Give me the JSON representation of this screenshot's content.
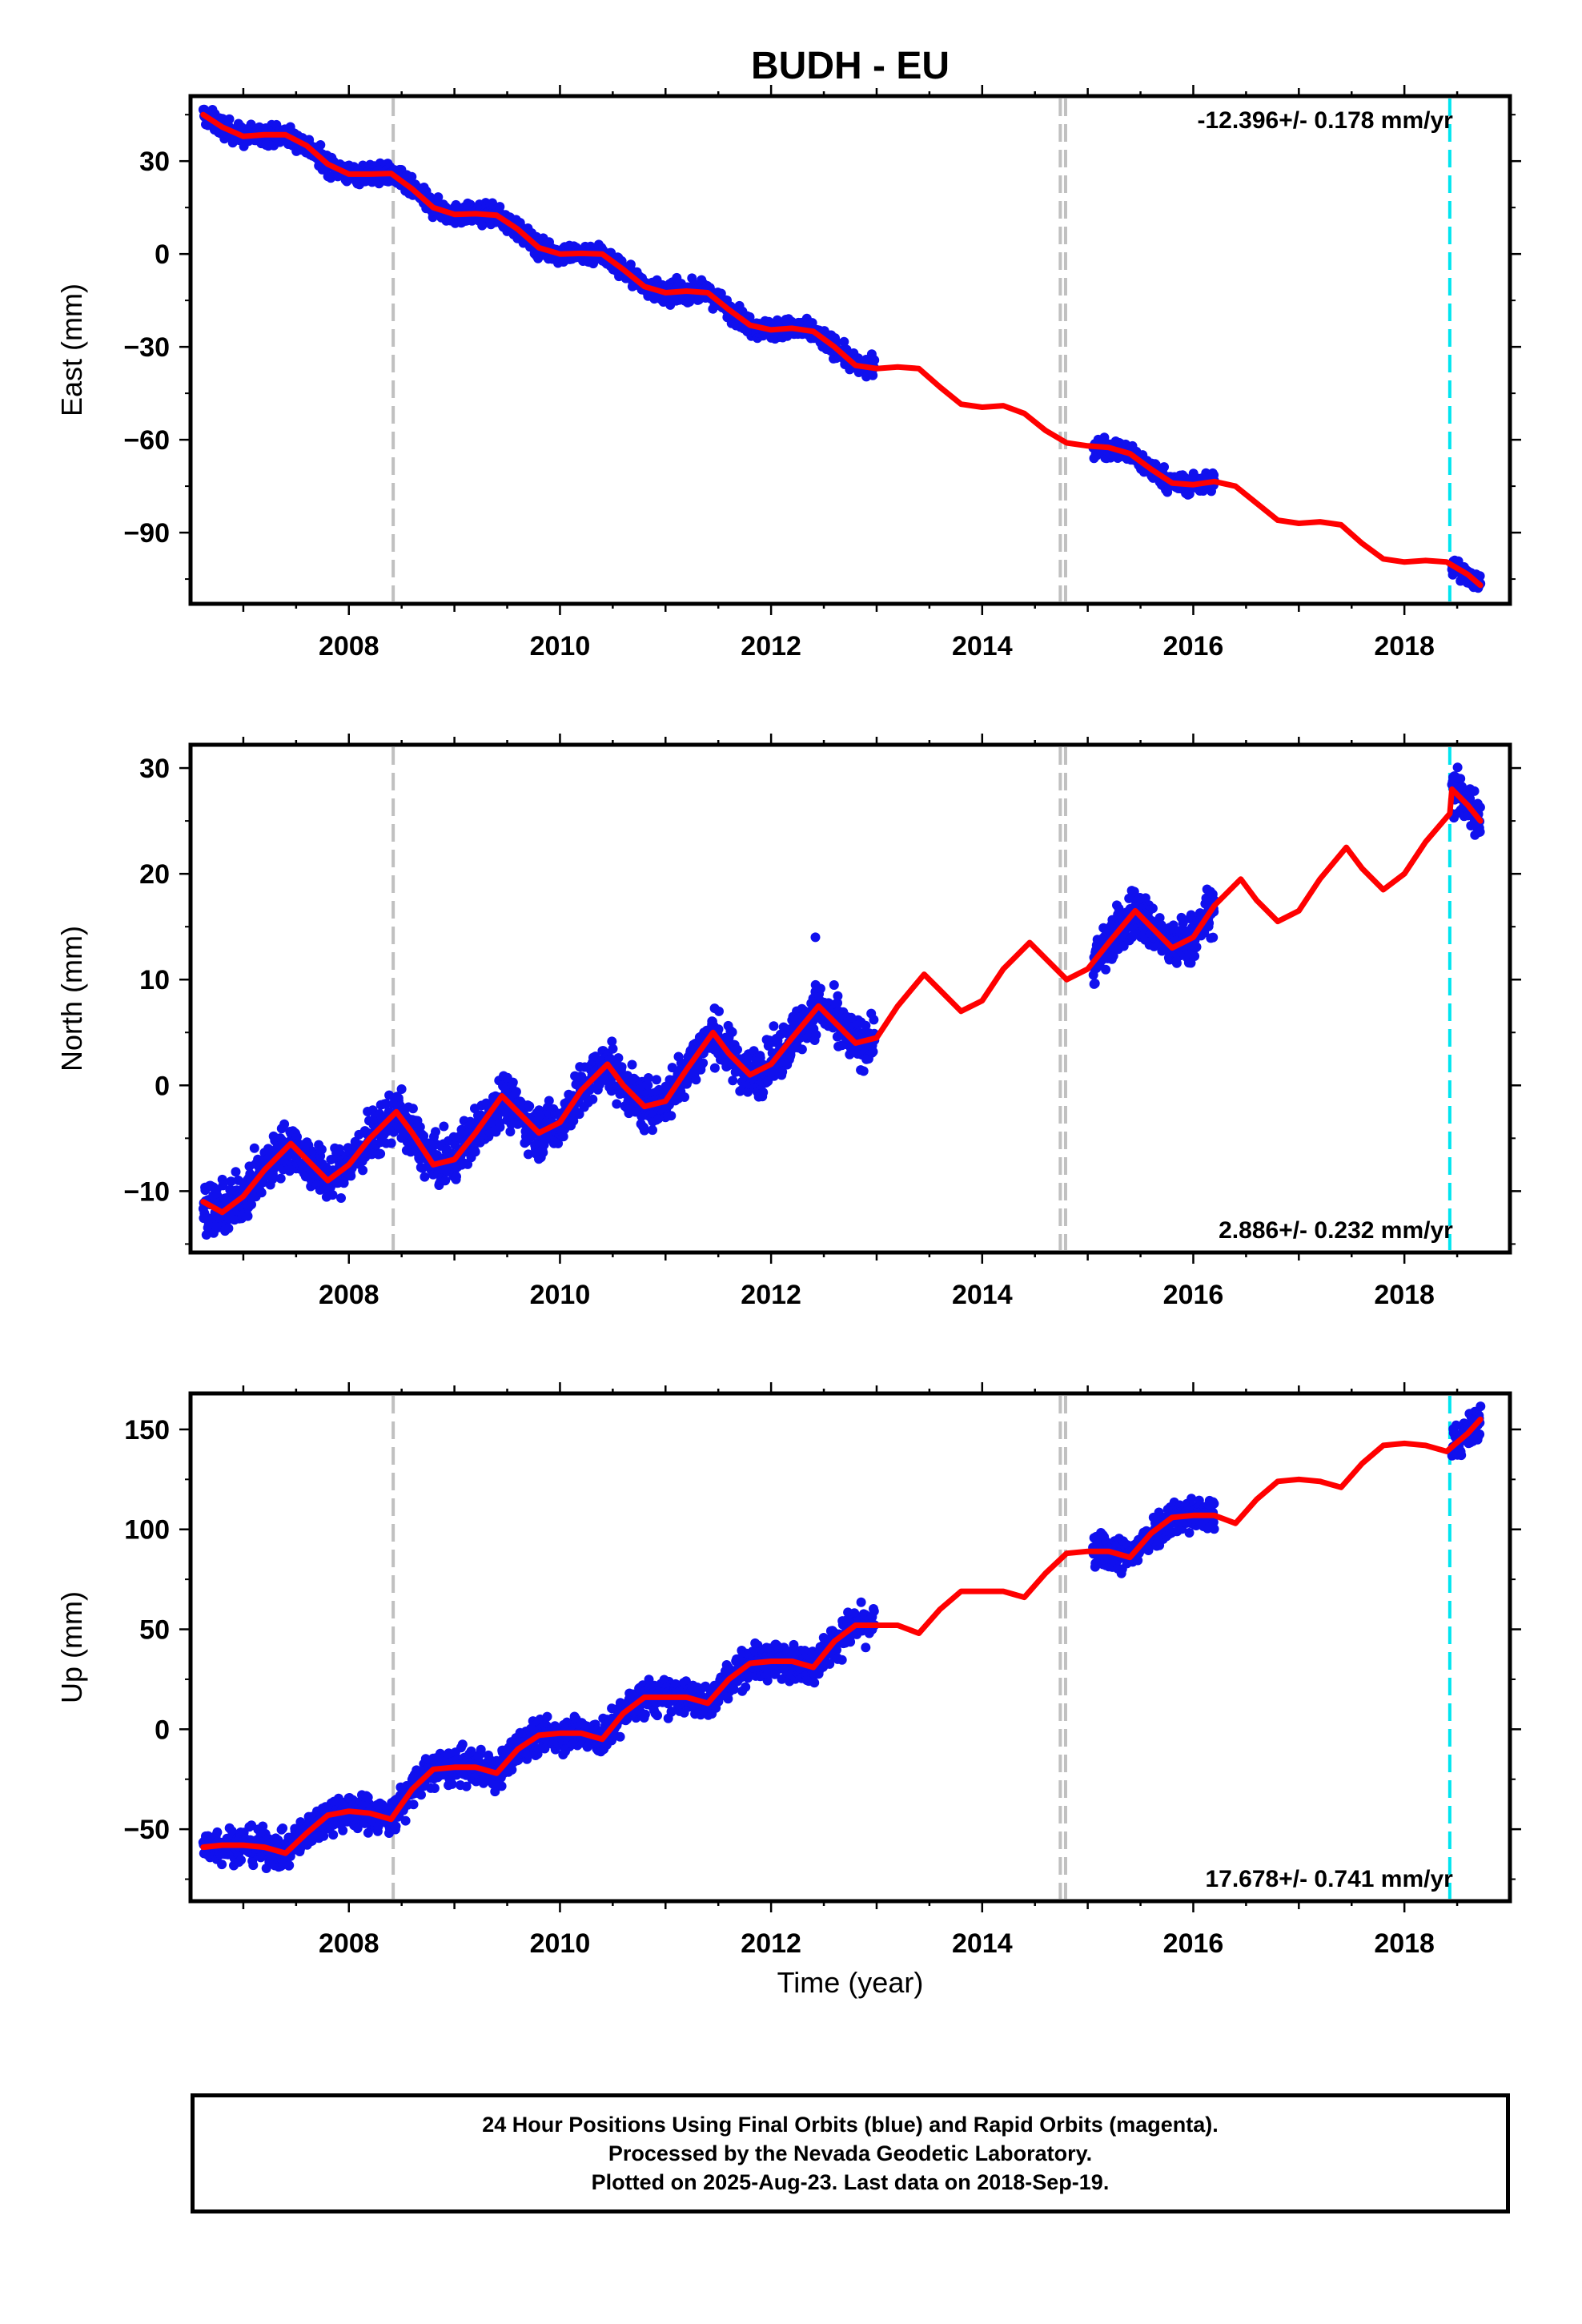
{
  "title": "BUDH - EU",
  "colors": {
    "data": "#1010ee",
    "model": "#ff0000",
    "equipment_change": "#c0c0c0",
    "earthquake": "#00e5f0",
    "frame": "#000000"
  },
  "xlabel": "Time (year)",
  "footer": {
    "line1": "24 Hour Positions Using Final Orbits (blue) and Rapid Orbits (magenta).",
    "line2": "Processed by the Nevada Geodetic Laboratory.",
    "line3": "Plotted on 2025-Aug-23. Last data on 2018-Sep-19."
  },
  "chart_data": [
    {
      "type": "scatter",
      "ylabel": "East (mm)",
      "rate_label": "-12.396+/- 0.178 mm/yr",
      "rate_label_position": "top-right",
      "xlim": [
        2006.5,
        2019.0
      ],
      "ylim": [
        -113,
        51
      ],
      "xticks": [
        2008,
        2010,
        2012,
        2014,
        2016,
        2018
      ],
      "yticks": [
        30,
        0,
        -30,
        -60,
        -90
      ],
      "ytick_labels": [
        "30",
        "0",
        "−30",
        "−60",
        "−90"
      ],
      "data_segments": [
        [
          2006.62,
          2012.98
        ],
        [
          2015.05,
          2016.2
        ],
        [
          2018.45,
          2018.72
        ]
      ],
      "vertical_lines": [
        {
          "x": 2008.42,
          "style": "dashed",
          "color": "gray"
        },
        {
          "x": 2014.74,
          "style": "dashed",
          "color": "gray"
        },
        {
          "x": 2014.79,
          "style": "dashed",
          "color": "gray"
        },
        {
          "x": 2018.43,
          "style": "dashed",
          "color": "cyan"
        }
      ],
      "model": {
        "x": [
          2006.62,
          2006.8,
          2007.0,
          2007.2,
          2007.4,
          2007.6,
          2007.8,
          2008.0,
          2008.2,
          2008.4,
          2008.6,
          2008.8,
          2009.0,
          2009.2,
          2009.4,
          2009.6,
          2009.8,
          2010.0,
          2010.2,
          2010.4,
          2010.6,
          2010.8,
          2011.0,
          2011.2,
          2011.4,
          2011.6,
          2011.8,
          2012.0,
          2012.2,
          2012.4,
          2012.6,
          2012.8,
          2013.0,
          2013.2,
          2013.4,
          2013.6,
          2013.8,
          2014.0,
          2014.2,
          2014.4,
          2014.6,
          2014.8,
          2015.0,
          2015.2,
          2015.4,
          2015.6,
          2015.8,
          2016.0,
          2016.2,
          2016.4,
          2016.6,
          2016.8,
          2017.0,
          2017.2,
          2017.4,
          2017.6,
          2017.8,
          2018.0,
          2018.2,
          2018.4,
          2018.6,
          2018.72
        ],
        "y": [
          45,
          41,
          38,
          38.5,
          38.5,
          35,
          29,
          25.8,
          25.8,
          26,
          21,
          15,
          12.8,
          13,
          12.5,
          8,
          2,
          0,
          0.2,
          0,
          -5,
          -10.5,
          -12.5,
          -12,
          -12.5,
          -18,
          -23,
          -24.5,
          -24,
          -25,
          -30,
          -36,
          -37,
          -36.5,
          -37,
          -43,
          -48.5,
          -49.5,
          -49,
          -51.5,
          -57,
          -61,
          -62,
          -62.5,
          -64.5,
          -69.5,
          -74,
          -74.5,
          -73.5,
          -75,
          -80.5,
          -86,
          -87,
          -86.5,
          -87.5,
          -93.5,
          -98.5,
          -99.5,
          -99,
          -99.5,
          -103.5,
          -107
        ]
      },
      "observations_approx": [
        {
          "x": 2006.7,
          "y": 44
        },
        {
          "x": 2007.0,
          "y": 38
        },
        {
          "x": 2007.5,
          "y": 37
        },
        {
          "x": 2008.0,
          "y": 26
        },
        {
          "x": 2008.5,
          "y": 25
        },
        {
          "x": 2009.0,
          "y": 13
        },
        {
          "x": 2009.5,
          "y": 12
        },
        {
          "x": 2010.0,
          "y": 0
        },
        {
          "x": 2010.5,
          "y": 0
        },
        {
          "x": 2011.0,
          "y": -12
        },
        {
          "x": 2011.5,
          "y": -13
        },
        {
          "x": 2012.0,
          "y": -24
        },
        {
          "x": 2012.5,
          "y": -25
        },
        {
          "x": 2012.9,
          "y": -36
        },
        {
          "x": 2015.2,
          "y": -62
        },
        {
          "x": 2015.6,
          "y": -68
        },
        {
          "x": 2016.0,
          "y": -74
        },
        {
          "x": 2018.5,
          "y": -100
        },
        {
          "x": 2018.7,
          "y": -106
        }
      ],
      "scatter_spread": 2.2
    },
    {
      "type": "scatter",
      "ylabel": "North (mm)",
      "rate_label": "2.886+/- 0.232 mm/yr",
      "rate_label_position": "bottom-right",
      "xlim": [
        2006.5,
        2019.0
      ],
      "ylim": [
        -15.8,
        32.2
      ],
      "xticks": [
        2008,
        2010,
        2012,
        2014,
        2016,
        2018
      ],
      "yticks": [
        30,
        20,
        10,
        0,
        -10
      ],
      "ytick_labels": [
        "30",
        "20",
        "10",
        "0",
        "−10"
      ],
      "data_segments": [
        [
          2006.62,
          2012.98
        ],
        [
          2015.05,
          2016.2
        ],
        [
          2018.45,
          2018.72
        ]
      ],
      "vertical_lines": [
        {
          "x": 2008.42,
          "style": "dashed",
          "color": "gray"
        },
        {
          "x": 2014.74,
          "style": "dashed",
          "color": "gray"
        },
        {
          "x": 2014.79,
          "style": "dashed",
          "color": "gray"
        },
        {
          "x": 2018.43,
          "style": "dashed",
          "color": "cyan"
        }
      ],
      "model": {
        "x": [
          2006.62,
          2006.8,
          2007.0,
          2007.2,
          2007.45,
          2007.6,
          2007.8,
          2008.0,
          2008.2,
          2008.45,
          2008.6,
          2008.8,
          2009.0,
          2009.2,
          2009.45,
          2009.6,
          2009.8,
          2010.0,
          2010.2,
          2010.45,
          2010.6,
          2010.8,
          2011.0,
          2011.2,
          2011.45,
          2011.6,
          2011.8,
          2012.0,
          2012.2,
          2012.45,
          2012.6,
          2012.8,
          2013.0,
          2013.2,
          2013.45,
          2013.6,
          2013.8,
          2014.0,
          2014.2,
          2014.45,
          2014.6,
          2014.8,
          2015.0,
          2015.2,
          2015.45,
          2015.6,
          2015.8,
          2016.0,
          2016.2,
          2016.45,
          2016.6,
          2016.8,
          2017.0,
          2017.2,
          2017.45,
          2017.6,
          2017.8,
          2018.0,
          2018.2,
          2018.43,
          2018.45,
          2018.6,
          2018.72
        ],
        "y": [
          -11,
          -12,
          -10.5,
          -8,
          -5.5,
          -7,
          -9,
          -7.5,
          -5,
          -2.5,
          -4.5,
          -7.5,
          -7,
          -4.5,
          -1,
          -2.5,
          -4.5,
          -3.5,
          -0.5,
          2,
          0,
          -2,
          -1.5,
          1.5,
          5,
          3,
          1,
          2,
          4.5,
          7.5,
          6,
          4,
          4.5,
          7.5,
          10.5,
          9,
          7,
          8,
          11,
          13.5,
          12,
          10,
          11,
          13.5,
          16.5,
          15,
          13,
          14,
          17,
          19.5,
          17.5,
          15.5,
          16.5,
          19.5,
          22.5,
          20.5,
          18.5,
          20,
          23,
          25.7,
          28,
          26.5,
          25
        ]
      },
      "outlier": {
        "x": 2012.42,
        "y": 14
      },
      "scatter_spread": 1.6
    },
    {
      "type": "scatter",
      "ylabel": "Up (mm)",
      "xlabel": "Time (year)",
      "rate_label": "17.678+/- 0.741 mm/yr",
      "rate_label_position": "bottom-right",
      "xlim": [
        2006.5,
        2019.0
      ],
      "ylim": [
        -86,
        168
      ],
      "xticks": [
        2008,
        2010,
        2012,
        2014,
        2016,
        2018
      ],
      "yticks": [
        150,
        100,
        50,
        0,
        -50
      ],
      "ytick_labels": [
        "150",
        "100",
        "50",
        "0",
        "−50"
      ],
      "data_segments": [
        [
          2006.62,
          2012.98
        ],
        [
          2015.05,
          2016.2
        ],
        [
          2018.45,
          2018.72
        ]
      ],
      "vertical_lines": [
        {
          "x": 2008.42,
          "style": "dashed",
          "color": "gray"
        },
        {
          "x": 2014.74,
          "style": "dashed",
          "color": "gray"
        },
        {
          "x": 2014.79,
          "style": "dashed",
          "color": "gray"
        },
        {
          "x": 2018.43,
          "style": "dashed",
          "color": "cyan"
        }
      ],
      "model": {
        "x": [
          2006.62,
          2006.8,
          2007.0,
          2007.2,
          2007.4,
          2007.6,
          2007.8,
          2008.0,
          2008.2,
          2008.4,
          2008.6,
          2008.8,
          2009.0,
          2009.2,
          2009.4,
          2009.6,
          2009.8,
          2010.0,
          2010.2,
          2010.4,
          2010.6,
          2010.8,
          2011.0,
          2011.2,
          2011.4,
          2011.6,
          2011.8,
          2012.0,
          2012.2,
          2012.4,
          2012.6,
          2012.8,
          2013.0,
          2013.2,
          2013.4,
          2013.6,
          2013.8,
          2014.0,
          2014.2,
          2014.4,
          2014.6,
          2014.8,
          2015.0,
          2015.2,
          2015.4,
          2015.6,
          2015.8,
          2016.0,
          2016.2,
          2016.4,
          2016.6,
          2016.8,
          2017.0,
          2017.2,
          2017.4,
          2017.6,
          2017.8,
          2018.0,
          2018.2,
          2018.4,
          2018.6,
          2018.72
        ],
        "y": [
          -59,
          -58,
          -58,
          -59,
          -62,
          -52,
          -43,
          -41,
          -42,
          -45,
          -30,
          -20,
          -19,
          -19,
          -22,
          -10,
          -3,
          -2,
          -2,
          -5,
          8,
          16,
          16,
          16,
          13,
          25,
          33,
          34,
          34,
          31,
          44,
          52,
          52,
          52,
          48,
          60,
          69,
          69,
          69,
          66,
          78,
          88,
          89,
          89,
          86,
          98,
          106,
          107,
          107,
          103,
          115,
          124,
          125,
          124,
          121,
          133,
          142,
          143,
          142,
          139,
          148,
          155
        ]
      },
      "scatter_spread": 6
    }
  ]
}
